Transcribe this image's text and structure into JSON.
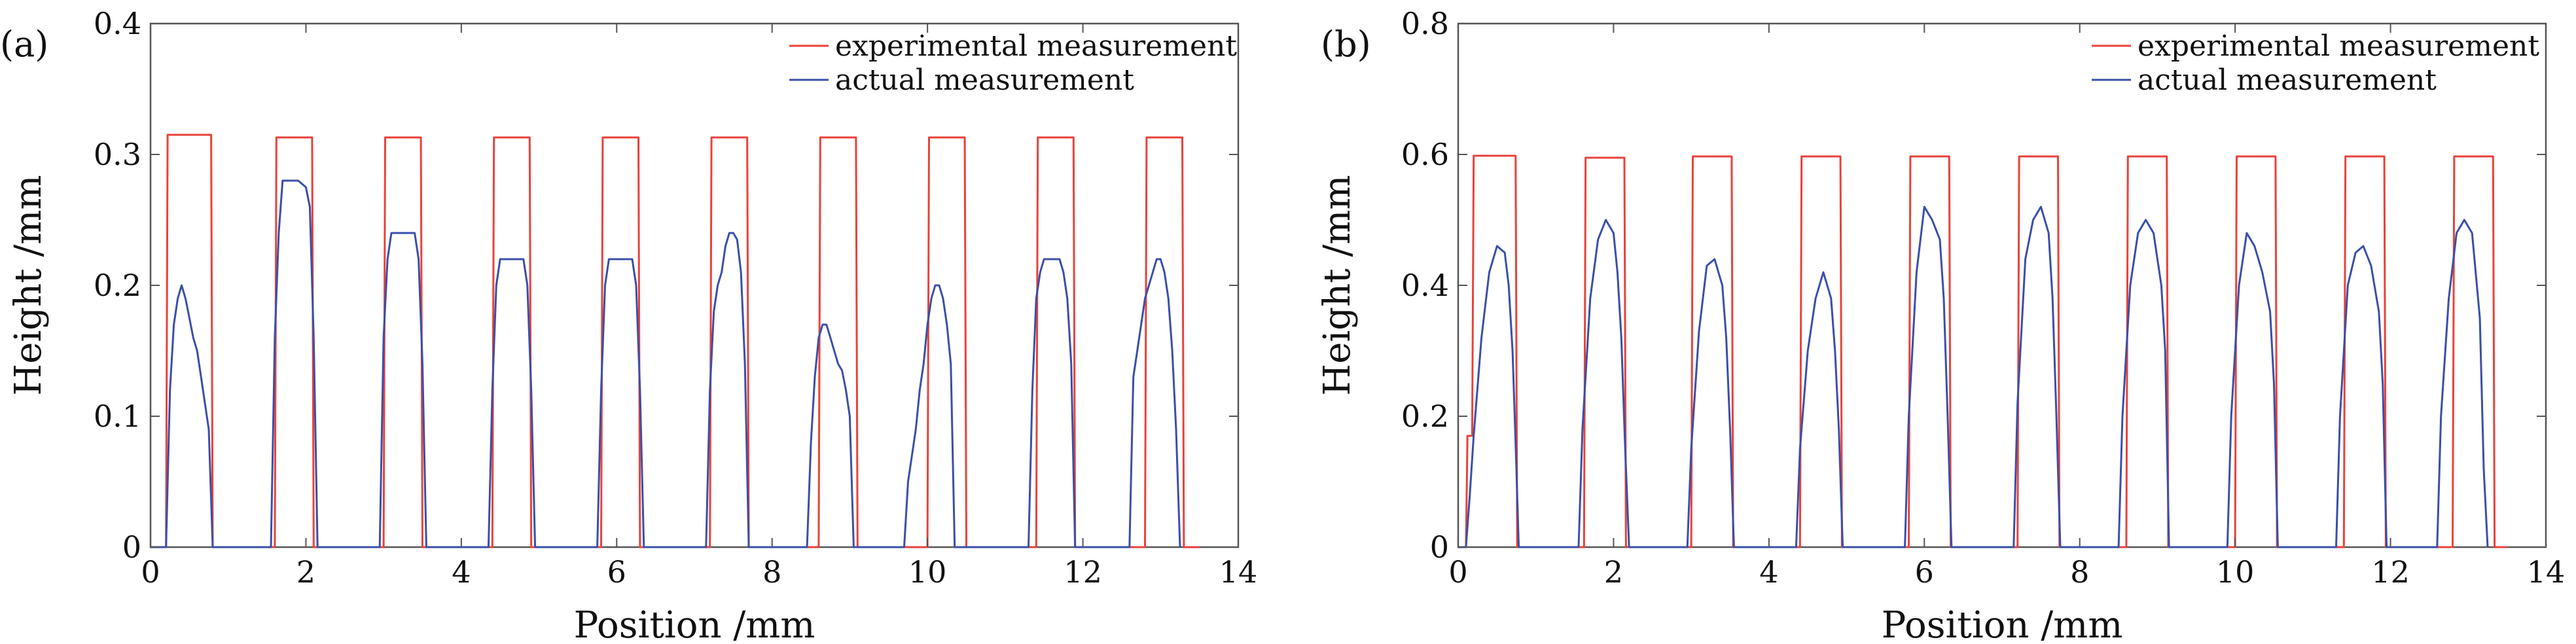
{
  "chart_data": [
    {
      "type": "line",
      "panel_label": "(a)",
      "title": "",
      "xlabel": "Position /mm",
      "ylabel": "Height /mm",
      "xlim": [
        0,
        14
      ],
      "ylim": [
        0,
        0.4
      ],
      "x_ticks": [
        0,
        2,
        4,
        6,
        8,
        10,
        12,
        14
      ],
      "y_ticks": [
        0,
        0.1,
        0.2,
        0.3,
        0.4
      ],
      "x_tick_labels": [
        "0",
        "2",
        "4",
        "6",
        "8",
        "10",
        "12",
        "14"
      ],
      "y_tick_labels": [
        "0",
        "0.1",
        "0.2",
        "0.3",
        "0.4"
      ],
      "grid": false,
      "legend_position": "top-right",
      "series": [
        {
          "name": "experimental measurement",
          "color": "#e8423a",
          "x": [
            0,
            0.2,
            0.22,
            0.78,
            0.8,
            1.6,
            1.62,
            2.08,
            2.1,
            3.0,
            3.02,
            3.48,
            3.5,
            4.4,
            4.42,
            4.88,
            4.9,
            5.8,
            5.82,
            6.28,
            6.3,
            7.2,
            7.22,
            7.68,
            7.7,
            8.6,
            8.62,
            9.08,
            9.1,
            10.0,
            10.02,
            10.48,
            10.5,
            11.4,
            11.42,
            11.88,
            11.9,
            12.8,
            12.82,
            13.28,
            13.3,
            13.5
          ],
          "y": [
            0,
            0,
            0.315,
            0.315,
            0,
            0,
            0.313,
            0.313,
            0,
            0,
            0.313,
            0.313,
            0,
            0,
            0.313,
            0.313,
            0,
            0,
            0.313,
            0.313,
            0,
            0,
            0.313,
            0.313,
            0,
            0,
            0.313,
            0.313,
            0,
            0,
            0.313,
            0.313,
            0,
            0,
            0.313,
            0.313,
            0,
            0,
            0.313,
            0.313,
            0,
            0
          ]
        },
        {
          "name": "actual measurement",
          "color": "#3b4fa8",
          "x": [
            0,
            0.2,
            0.25,
            0.3,
            0.35,
            0.4,
            0.45,
            0.5,
            0.55,
            0.6,
            0.65,
            0.7,
            0.75,
            0.8,
            1.55,
            1.6,
            1.65,
            1.7,
            1.8,
            1.9,
            2.0,
            2.05,
            2.1,
            2.15,
            2.95,
            3.0,
            3.05,
            3.1,
            3.2,
            3.3,
            3.4,
            3.45,
            3.5,
            3.55,
            4.35,
            4.4,
            4.45,
            4.5,
            4.6,
            4.7,
            4.8,
            4.85,
            4.9,
            4.95,
            5.75,
            5.8,
            5.85,
            5.9,
            6.0,
            6.1,
            6.2,
            6.25,
            6.3,
            6.35,
            7.15,
            7.2,
            7.25,
            7.3,
            7.35,
            7.4,
            7.45,
            7.5,
            7.55,
            7.6,
            7.65,
            7.7,
            8.45,
            8.5,
            8.55,
            8.6,
            8.65,
            8.7,
            8.75,
            8.8,
            8.85,
            8.9,
            8.95,
            9.0,
            9.05,
            9.7,
            9.75,
            9.8,
            9.85,
            9.9,
            9.95,
            10.0,
            10.05,
            10.1,
            10.15,
            10.2,
            10.25,
            10.3,
            10.35,
            11.3,
            11.35,
            11.4,
            11.45,
            11.5,
            11.6,
            11.7,
            11.75,
            11.8,
            11.85,
            11.9,
            12.6,
            12.65,
            12.7,
            12.75,
            12.8,
            12.85,
            12.9,
            12.95,
            13.0,
            13.05,
            13.1,
            13.15,
            13.2,
            13.25
          ],
          "y": [
            0,
            0,
            0.12,
            0.17,
            0.19,
            0.2,
            0.19,
            0.175,
            0.16,
            0.15,
            0.13,
            0.11,
            0.09,
            0,
            0,
            0.16,
            0.24,
            0.28,
            0.28,
            0.28,
            0.275,
            0.26,
            0.16,
            0,
            0,
            0.16,
            0.22,
            0.24,
            0.24,
            0.24,
            0.24,
            0.22,
            0.14,
            0,
            0,
            0.12,
            0.2,
            0.22,
            0.22,
            0.22,
            0.22,
            0.2,
            0.12,
            0,
            0,
            0.12,
            0.2,
            0.22,
            0.22,
            0.22,
            0.22,
            0.2,
            0.12,
            0,
            0,
            0.12,
            0.18,
            0.2,
            0.21,
            0.23,
            0.24,
            0.24,
            0.235,
            0.21,
            0.14,
            0,
            0,
            0.08,
            0.13,
            0.16,
            0.17,
            0.17,
            0.16,
            0.15,
            0.14,
            0.135,
            0.12,
            0.1,
            0,
            0,
            0.05,
            0.07,
            0.09,
            0.12,
            0.14,
            0.17,
            0.19,
            0.2,
            0.2,
            0.19,
            0.17,
            0.14,
            0,
            0,
            0.12,
            0.19,
            0.21,
            0.22,
            0.22,
            0.22,
            0.21,
            0.19,
            0.14,
            0,
            0,
            0.13,
            0.15,
            0.17,
            0.19,
            0.2,
            0.21,
            0.22,
            0.22,
            0.21,
            0.19,
            0.15,
            0.09,
            0
          ]
        }
      ]
    },
    {
      "type": "line",
      "panel_label": "(b)",
      "title": "",
      "xlabel": "Position /mm",
      "ylabel": "Height /mm",
      "xlim": [
        0,
        14
      ],
      "ylim": [
        0,
        0.8
      ],
      "x_ticks": [
        0,
        2,
        4,
        6,
        8,
        10,
        12,
        14
      ],
      "y_ticks": [
        0,
        0.2,
        0.4,
        0.6,
        0.8
      ],
      "x_tick_labels": [
        "0",
        "2",
        "4",
        "6",
        "8",
        "10",
        "12",
        "14"
      ],
      "y_tick_labels": [
        "0",
        "0.2",
        "0.4",
        "0.6",
        "0.8"
      ],
      "grid": false,
      "legend_position": "top-right",
      "series": [
        {
          "name": "experimental measurement",
          "color": "#e8423a",
          "x": [
            0,
            0.1,
            0.12,
            0.18,
            0.2,
            0.22,
            0.74,
            0.76,
            1.62,
            1.64,
            2.14,
            2.16,
            3.0,
            3.02,
            3.52,
            3.54,
            4.4,
            4.42,
            4.92,
            4.94,
            5.8,
            5.82,
            6.32,
            6.34,
            7.2,
            7.22,
            7.72,
            7.74,
            8.6,
            8.62,
            9.12,
            9.14,
            10.0,
            10.02,
            10.52,
            10.54,
            11.4,
            11.42,
            11.92,
            11.94,
            12.8,
            12.82,
            13.32,
            13.34,
            13.5
          ],
          "y": [
            0,
            0,
            0.17,
            0.17,
            0.598,
            0.598,
            0.598,
            0,
            0,
            0.595,
            0.595,
            0,
            0,
            0.597,
            0.597,
            0,
            0,
            0.597,
            0.597,
            0,
            0,
            0.597,
            0.597,
            0,
            0,
            0.597,
            0.597,
            0,
            0,
            0.597,
            0.597,
            0,
            0,
            0.597,
            0.597,
            0,
            0,
            0.597,
            0.597,
            0,
            0,
            0.597,
            0.597,
            0,
            0
          ]
        },
        {
          "name": "actual measurement",
          "color": "#3b4fa8",
          "x": [
            0,
            0.1,
            0.15,
            0.2,
            0.3,
            0.4,
            0.5,
            0.6,
            0.65,
            0.7,
            0.75,
            0.78,
            1.55,
            1.6,
            1.7,
            1.8,
            1.9,
            2.0,
            2.05,
            2.1,
            2.15,
            2.2,
            2.95,
            3.0,
            3.1,
            3.2,
            3.3,
            3.4,
            3.45,
            3.5,
            3.55,
            4.35,
            4.4,
            4.5,
            4.6,
            4.7,
            4.8,
            4.85,
            4.9,
            4.95,
            5.75,
            5.8,
            5.9,
            6.0,
            6.1,
            6.2,
            6.25,
            6.3,
            6.35,
            7.15,
            7.2,
            7.3,
            7.4,
            7.5,
            7.6,
            7.65,
            7.7,
            7.75,
            8.5,
            8.55,
            8.65,
            8.75,
            8.85,
            8.95,
            9.05,
            9.1,
            9.15,
            9.9,
            9.95,
            10.05,
            10.15,
            10.25,
            10.35,
            10.45,
            10.5,
            10.55,
            11.3,
            11.35,
            11.45,
            11.55,
            11.65,
            11.75,
            11.85,
            11.9,
            11.95,
            12.6,
            12.65,
            12.75,
            12.85,
            12.95,
            13.05,
            13.15,
            13.2,
            13.25
          ],
          "y": [
            0,
            0,
            0.08,
            0.17,
            0.32,
            0.42,
            0.46,
            0.45,
            0.4,
            0.3,
            0.12,
            0,
            0,
            0.18,
            0.38,
            0.47,
            0.5,
            0.48,
            0.42,
            0.32,
            0.15,
            0,
            0,
            0.15,
            0.33,
            0.43,
            0.44,
            0.4,
            0.32,
            0.18,
            0,
            0,
            0.15,
            0.3,
            0.38,
            0.42,
            0.38,
            0.3,
            0.18,
            0,
            0,
            0.2,
            0.42,
            0.52,
            0.5,
            0.47,
            0.38,
            0.2,
            0,
            0,
            0.22,
            0.44,
            0.5,
            0.52,
            0.48,
            0.38,
            0.2,
            0,
            0,
            0.2,
            0.4,
            0.48,
            0.5,
            0.48,
            0.4,
            0.3,
            0,
            0,
            0.2,
            0.4,
            0.48,
            0.46,
            0.42,
            0.36,
            0.25,
            0,
            0,
            0.2,
            0.4,
            0.45,
            0.46,
            0.43,
            0.36,
            0.25,
            0,
            0,
            0.2,
            0.38,
            0.48,
            0.5,
            0.48,
            0.35,
            0.12,
            0
          ]
        }
      ]
    }
  ]
}
